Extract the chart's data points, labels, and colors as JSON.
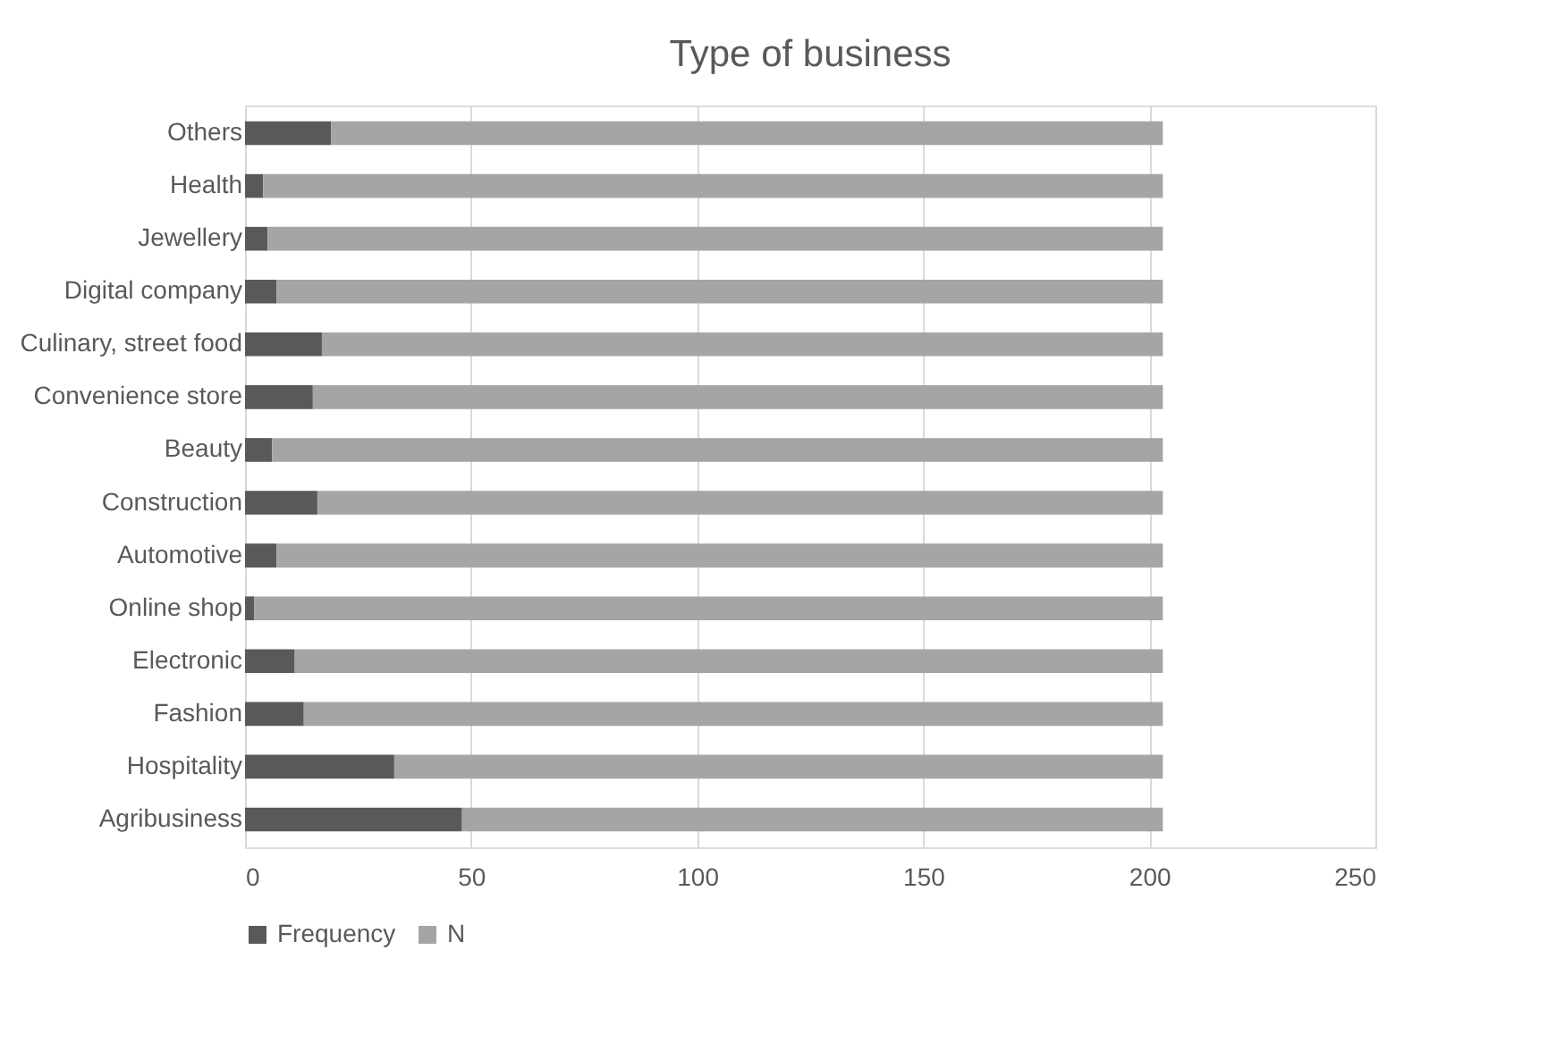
{
  "chart_data": {
    "type": "bar",
    "orientation": "horizontal",
    "stacked": true,
    "title": "Type of business",
    "categories": [
      "Others",
      "Health",
      "Jewellery",
      "Digital company",
      "Culinary, street food",
      "Convenience store",
      "Beauty",
      "Construction",
      "Automotive",
      "Online shop",
      "Electronic",
      "Fashion",
      "Hospitality",
      "Agribusiness"
    ],
    "series": [
      {
        "name": "Frequency",
        "color": "#595959",
        "values": [
          19,
          4,
          5,
          7,
          17,
          15,
          6,
          16,
          7,
          2,
          11,
          13,
          33,
          48
        ]
      },
      {
        "name": "N",
        "color": "#a5a5a5",
        "values": [
          184,
          199,
          198,
          196,
          186,
          188,
          197,
          187,
          196,
          201,
          192,
          190,
          170,
          155
        ]
      }
    ],
    "xlim": [
      0,
      250
    ],
    "xticks": [
      0,
      50,
      100,
      150,
      200,
      250
    ],
    "grid": "x",
    "legend": "bottom"
  }
}
